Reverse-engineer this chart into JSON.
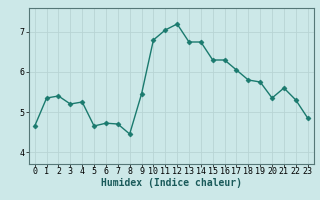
{
  "x": [
    0,
    1,
    2,
    3,
    4,
    5,
    6,
    7,
    8,
    9,
    10,
    11,
    12,
    13,
    14,
    15,
    16,
    17,
    18,
    19,
    20,
    21,
    22,
    23
  ],
  "y": [
    4.65,
    5.35,
    5.4,
    5.2,
    5.25,
    4.65,
    4.72,
    4.7,
    4.45,
    5.45,
    6.8,
    7.05,
    7.2,
    6.75,
    6.75,
    6.3,
    6.3,
    6.05,
    5.8,
    5.75,
    5.35,
    5.6,
    5.3,
    4.85
  ],
  "line_color": "#1a7a6e",
  "marker": "D",
  "marker_size": 2.5,
  "linewidth": 1.0,
  "bg_color": "#cce8e8",
  "grid_color": "#b8d4d4",
  "axis_bg": "#cce8e8",
  "xlabel": "Humidex (Indice chaleur)",
  "xlabel_fontsize": 7,
  "tick_fontsize": 6,
  "yticks": [
    4,
    5,
    6,
    7
  ],
  "ylim": [
    3.7,
    7.6
  ],
  "xlim": [
    -0.5,
    23.5
  ],
  "xticks": [
    0,
    1,
    2,
    3,
    4,
    5,
    6,
    7,
    8,
    9,
    10,
    11,
    12,
    13,
    14,
    15,
    16,
    17,
    18,
    19,
    20,
    21,
    22,
    23
  ]
}
